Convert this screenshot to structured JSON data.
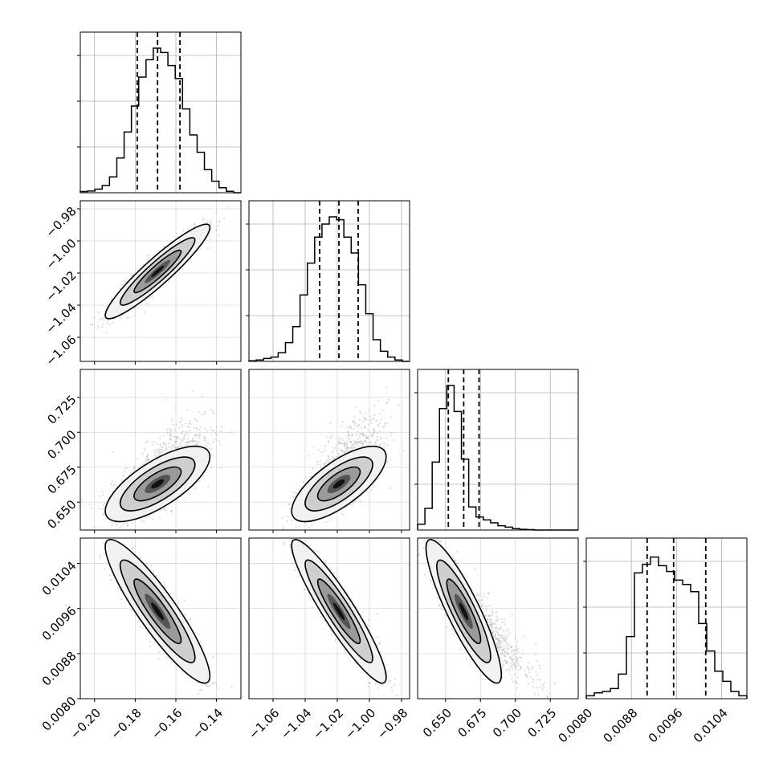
{
  "chart_data": {
    "type": "corner",
    "parameters": [
      {
        "range": [
          -0.207,
          -0.128
        ],
        "ticks": [
          -0.2,
          -0.18,
          -0.16,
          -0.14
        ],
        "tick_labels": [
          "−0.20",
          "−0.18",
          "−0.16",
          "−0.14"
        ],
        "quantiles": [
          -0.179,
          -0.169,
          -0.158
        ],
        "hist": [
          0.008,
          0.012,
          0.025,
          0.05,
          0.11,
          0.24,
          0.42,
          0.6,
          0.8,
          0.92,
          1.0,
          0.97,
          0.88,
          0.79,
          0.58,
          0.4,
          0.28,
          0.16,
          0.08,
          0.035,
          0.01,
          0.0
        ]
      },
      {
        "range": [
          -1.075,
          -0.975
        ],
        "ticks": [
          -1.06,
          -1.04,
          -1.02,
          -1.0,
          -0.98
        ],
        "tick_labels": [
          "−1.06",
          "−1.04",
          "−1.02",
          "−1.00",
          "−0.98"
        ],
        "quantiles": [
          -1.031,
          -1.019,
          -1.007
        ],
        "hist": [
          0.004,
          0.01,
          0.02,
          0.03,
          0.06,
          0.13,
          0.24,
          0.46,
          0.68,
          0.86,
          0.95,
          1.0,
          0.98,
          0.86,
          0.75,
          0.53,
          0.33,
          0.15,
          0.07,
          0.03,
          0.01,
          0.0
        ]
      },
      {
        "range": [
          0.63,
          0.745
        ],
        "ticks": [
          0.65,
          0.675,
          0.7,
          0.725
        ],
        "tick_labels": [
          "0.650",
          "0.675",
          "0.700",
          "0.725"
        ],
        "quantiles": [
          0.652,
          0.663,
          0.674
        ],
        "hist": [
          0.04,
          0.15,
          0.47,
          0.84,
          1.0,
          0.82,
          0.49,
          0.16,
          0.09,
          0.07,
          0.05,
          0.03,
          0.02,
          0.01,
          0.005,
          0.003,
          0.0,
          0.0,
          0.0,
          0.0,
          0.0,
          0.0
        ]
      },
      {
        "range": [
          0.008,
          0.01085
        ],
        "ticks": [
          0.008,
          0.0088,
          0.0096,
          0.0104
        ],
        "tick_labels": [
          "0.0080",
          "0.0088",
          "0.0096",
          "0.0104"
        ],
        "quantiles": [
          0.00908,
          0.00955,
          0.01012
        ],
        "hist": [
          0.02,
          0.04,
          0.05,
          0.07,
          0.17,
          0.43,
          0.87,
          0.93,
          0.98,
          0.92,
          0.88,
          0.82,
          0.79,
          0.74,
          0.52,
          0.33,
          0.19,
          0.12,
          0.05,
          0.02
        ]
      }
    ],
    "correlations": {
      "1-0": 0.93,
      "2-0": 0.72,
      "2-1": 0.72,
      "3-0": -0.9,
      "3-1": -0.92,
      "3-2": -0.88
    },
    "marginal_ylabel": "",
    "grid": true,
    "colors": {
      "hist": "#000000",
      "points": "#b4b4b4",
      "contour_dark": "#000000"
    }
  }
}
